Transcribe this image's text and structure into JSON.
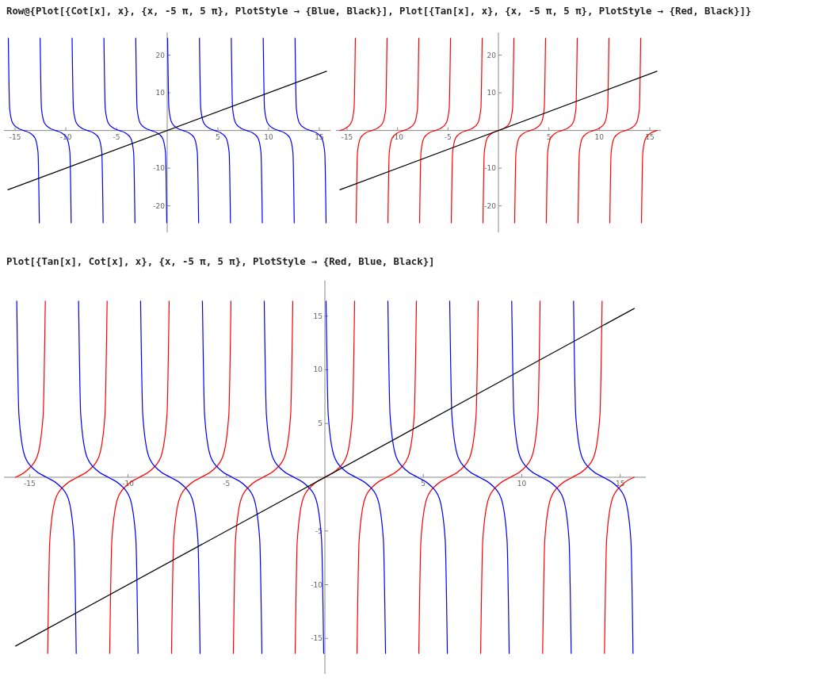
{
  "chart_data": [
    {
      "type": "line",
      "title": "Row@{Plot[{Cot[x], x}, {x, -5 π, 5 π}, PlotStyle → {Blue, Black}], Plot[{Tan[x], x}, {x, -5 π, 5 π}, PlotStyle → {Red, Black}]}",
      "xlim": [
        -16.1,
        16.1
      ],
      "ylim": [
        -27,
        26
      ],
      "xticks": [
        -15,
        -10,
        -5,
        5,
        10,
        15
      ],
      "yticks": [
        -20,
        -10,
        10,
        20
      ],
      "series": [
        {
          "color": "#0000ff",
          "x": [
            -15.67,
            -15.54,
            -15.24,
            -14.74,
            -14.14,
            -13.54,
            -13.04,
            -12.74,
            -12.61,
            null,
            -12.53,
            -12.4,
            -12.1,
            -11.6,
            -11.0,
            -10.4,
            -9.9,
            -9.6,
            -9.47,
            null,
            -9.38,
            -9.25,
            -8.95,
            -8.45,
            -7.85,
            -7.25,
            -6.75,
            -6.45,
            -6.32,
            null,
            -6.24,
            -6.11,
            -5.81,
            -5.31,
            -4.71,
            -4.11,
            -3.61,
            -3.31,
            -3.18,
            null,
            -3.1,
            -2.97,
            -2.67,
            -2.17,
            -1.57,
            -0.97,
            -0.47,
            -0.17,
            -0.04,
            null,
            0.04,
            0.17,
            0.47,
            0.97,
            1.57,
            2.17,
            2.67,
            2.97,
            3.1,
            null,
            3.18,
            3.31,
            3.61,
            4.11,
            4.71,
            5.31,
            5.81,
            6.11,
            6.24,
            null,
            6.32,
            6.45,
            6.75,
            7.25,
            7.85,
            8.45,
            8.95,
            9.25,
            9.38,
            null,
            9.47,
            9.6,
            9.9,
            10.4,
            11.0,
            11.6,
            12.1,
            12.4,
            12.53,
            null,
            12.61,
            12.74,
            13.04,
            13.54,
            14.14,
            14.74,
            15.24,
            15.54,
            15.67
          ],
          "values": [
            24.5,
            5.8,
            1.96,
            0.68,
            0,
            -0.68,
            -1.96,
            -5.8,
            -24.5,
            null,
            24.5,
            5.8,
            1.96,
            0.68,
            0,
            -0.68,
            -1.96,
            -5.8,
            -24.5,
            null,
            24.5,
            5.8,
            1.96,
            0.68,
            0,
            -0.68,
            -1.96,
            -5.8,
            -24.5,
            null,
            24.5,
            5.8,
            1.96,
            0.68,
            0,
            -0.68,
            -1.96,
            -5.8,
            -24.5,
            null,
            24.5,
            5.8,
            1.96,
            0.68,
            0,
            -0.68,
            -1.96,
            -5.8,
            -24.5,
            null,
            24.5,
            5.8,
            1.96,
            0.68,
            0,
            -0.68,
            -1.96,
            -5.8,
            -24.5,
            null,
            24.5,
            5.8,
            1.96,
            0.68,
            0,
            -0.68,
            -1.96,
            -5.8,
            -24.5,
            null,
            24.5,
            5.8,
            1.96,
            0.68,
            0,
            -0.68,
            -1.96,
            -5.8,
            -24.5,
            null,
            24.5,
            5.8,
            1.96,
            0.68,
            0,
            -0.68,
            -1.96,
            -5.8,
            -24.5,
            null,
            24.5,
            5.8,
            1.96,
            0.68,
            0,
            -0.68,
            -1.96,
            -5.8,
            -24.5
          ]
        },
        {
          "color": "#000000",
          "x": [
            -15.71,
            15.71
          ],
          "values": [
            -15.71,
            15.71
          ]
        }
      ]
    },
    {
      "type": "line",
      "xlim": [
        -16.1,
        16.1
      ],
      "ylim": [
        -27,
        26
      ],
      "xticks": [
        -15,
        -10,
        -5,
        5,
        10,
        15
      ],
      "yticks": [
        -20,
        -10,
        10,
        20
      ],
      "series": [
        {
          "color": "#ff0000",
          "x": [
            -15.71,
            -15.11,
            -14.61,
            -14.31,
            -14.18,
            null,
            -14.1,
            -13.97,
            -13.67,
            -13.17,
            -12.57,
            -11.97,
            -11.47,
            -11.17,
            -11.04,
            null,
            -10.95,
            -10.82,
            -10.52,
            -10.02,
            -9.42,
            -8.82,
            -8.32,
            -8.02,
            -7.89,
            null,
            -7.81,
            -7.68,
            -7.38,
            -6.88,
            -6.28,
            -5.68,
            -5.18,
            -4.88,
            -4.75,
            null,
            -4.67,
            -4.54,
            -4.24,
            -3.74,
            -3.14,
            -2.54,
            -2.04,
            -1.74,
            -1.61,
            null,
            -1.53,
            -1.4,
            -1.1,
            -0.6,
            0,
            0.6,
            1.1,
            1.4,
            1.53,
            null,
            1.61,
            1.74,
            2.04,
            2.54,
            3.14,
            3.74,
            4.24,
            4.54,
            4.67,
            null,
            4.75,
            4.88,
            5.18,
            5.68,
            6.28,
            6.88,
            7.38,
            7.68,
            7.81,
            null,
            7.89,
            8.02,
            8.32,
            8.82,
            9.42,
            10.02,
            10.52,
            10.82,
            10.95,
            null,
            11.04,
            11.17,
            11.47,
            11.97,
            12.57,
            13.17,
            13.67,
            13.97,
            14.1,
            null,
            14.18,
            14.31,
            14.61,
            15.11,
            15.71
          ],
          "values": [
            0,
            0.68,
            1.96,
            5.8,
            24.5,
            null,
            -24.5,
            -5.8,
            -1.96,
            -0.68,
            0,
            0.68,
            1.96,
            5.8,
            24.5,
            null,
            -24.5,
            -5.8,
            -1.96,
            -0.68,
            0,
            0.68,
            1.96,
            5.8,
            24.5,
            null,
            -24.5,
            -5.8,
            -1.96,
            -0.68,
            0,
            0.68,
            1.96,
            5.8,
            24.5,
            null,
            -24.5,
            -5.8,
            -1.96,
            -0.68,
            0,
            0.68,
            1.96,
            5.8,
            24.5,
            null,
            -24.5,
            -5.8,
            -1.96,
            -0.68,
            0,
            0.68,
            1.96,
            5.8,
            24.5,
            null,
            -24.5,
            -5.8,
            -1.96,
            -0.68,
            0,
            0.68,
            1.96,
            5.8,
            24.5,
            null,
            -24.5,
            -5.8,
            -1.96,
            -0.68,
            0,
            0.68,
            1.96,
            5.8,
            24.5,
            null,
            -24.5,
            -5.8,
            -1.96,
            -0.68,
            0,
            0.68,
            1.96,
            5.8,
            24.5,
            null,
            -24.5,
            -5.8,
            -1.96,
            -0.68,
            0,
            0.68,
            1.96,
            5.8,
            24.5,
            null,
            -24.5,
            -5.8,
            -1.96,
            -0.68,
            0
          ]
        },
        {
          "color": "#000000",
          "x": [
            -15.71,
            15.71
          ],
          "values": [
            -15.71,
            15.71
          ]
        }
      ]
    },
    {
      "type": "line",
      "title": "Plot[{Tan[x], Cot[x], x}, {x, -5 π, 5 π}, PlotStyle → {Red, Blue, Black}]",
      "xlim": [
        -16.3,
        16.3
      ],
      "ylim": [
        -18.3,
        18.3
      ],
      "xticks": [
        -15,
        -10,
        -5,
        5,
        10,
        15
      ],
      "yticks": [
        -15,
        -10,
        -5,
        5,
        10,
        15
      ],
      "series": [
        {
          "color": "#ff0000",
          "x": [
            -15.71,
            -15.11,
            -14.61,
            -14.31,
            -14.2,
            null,
            -14.08,
            -13.97,
            -13.67,
            -13.17,
            -12.57,
            -11.97,
            -11.47,
            -11.17,
            -11.06,
            null,
            -10.93,
            -10.82,
            -10.52,
            -10.02,
            -9.42,
            -8.82,
            -8.32,
            -8.02,
            -7.91,
            null,
            -7.79,
            -7.68,
            -7.38,
            -6.88,
            -6.28,
            -5.68,
            -5.18,
            -4.88,
            -4.77,
            null,
            -4.65,
            -4.54,
            -4.24,
            -3.74,
            -3.14,
            -2.54,
            -2.04,
            -1.74,
            -1.63,
            null,
            -1.51,
            -1.4,
            -1.1,
            -0.6,
            0,
            0.6,
            1.1,
            1.4,
            1.51,
            null,
            1.63,
            1.74,
            2.04,
            2.54,
            3.14,
            3.74,
            4.24,
            4.54,
            4.65,
            null,
            4.77,
            4.88,
            5.18,
            5.68,
            6.28,
            6.88,
            7.38,
            7.68,
            7.79,
            null,
            7.91,
            8.02,
            8.32,
            8.82,
            9.42,
            10.02,
            10.52,
            10.82,
            10.93,
            null,
            11.06,
            11.17,
            11.47,
            11.97,
            12.57,
            13.17,
            13.67,
            13.97,
            14.08,
            null,
            14.2,
            14.31,
            14.61,
            15.11,
            15.71
          ],
          "values": [
            0,
            0.68,
            1.96,
            5.8,
            16.4,
            null,
            -16.4,
            -5.8,
            -1.96,
            -0.68,
            0,
            0.68,
            1.96,
            5.8,
            16.4,
            null,
            -16.4,
            -5.8,
            -1.96,
            -0.68,
            0,
            0.68,
            1.96,
            5.8,
            16.4,
            null,
            -16.4,
            -5.8,
            -1.96,
            -0.68,
            0,
            0.68,
            1.96,
            5.8,
            16.4,
            null,
            -16.4,
            -5.8,
            -1.96,
            -0.68,
            0,
            0.68,
            1.96,
            5.8,
            16.4,
            null,
            -16.4,
            -5.8,
            -1.96,
            -0.68,
            0,
            0.68,
            1.96,
            5.8,
            16.4,
            null,
            -16.4,
            -5.8,
            -1.96,
            -0.68,
            0,
            0.68,
            1.96,
            5.8,
            16.4,
            null,
            -16.4,
            -5.8,
            -1.96,
            -0.68,
            0,
            0.68,
            1.96,
            5.8,
            16.4,
            null,
            -16.4,
            -5.8,
            -1.96,
            -0.68,
            0,
            0.68,
            1.96,
            5.8,
            16.4,
            null,
            -16.4,
            -5.8,
            -1.96,
            -0.68,
            0,
            0.68,
            1.96,
            5.8,
            16.4,
            null,
            -16.4,
            -5.8,
            -1.96,
            -0.68,
            0
          ]
        },
        {
          "color": "#0000ff",
          "x": [
            -15.65,
            -15.54,
            -15.24,
            -14.74,
            -14.14,
            -13.54,
            -13.04,
            -12.74,
            -12.63,
            null,
            -12.51,
            -12.4,
            -12.1,
            -11.6,
            -11.0,
            -10.4,
            -9.9,
            -9.6,
            -9.49,
            null,
            -9.36,
            -9.25,
            -8.95,
            -8.45,
            -7.85,
            -7.25,
            -6.75,
            -6.45,
            -6.34,
            null,
            -6.22,
            -6.11,
            -5.81,
            -5.31,
            -4.71,
            -4.11,
            -3.61,
            -3.31,
            -3.2,
            null,
            -3.08,
            -2.97,
            -2.67,
            -2.17,
            -1.57,
            -0.97,
            -0.47,
            -0.17,
            -0.06,
            null,
            0.06,
            0.17,
            0.47,
            0.97,
            1.57,
            2.17,
            2.67,
            2.97,
            3.08,
            null,
            3.2,
            3.31,
            3.61,
            4.11,
            4.71,
            5.31,
            5.81,
            6.11,
            6.22,
            null,
            6.34,
            6.45,
            6.75,
            7.25,
            7.85,
            8.45,
            8.95,
            9.25,
            9.36,
            null,
            9.49,
            9.6,
            9.9,
            10.4,
            11.0,
            11.6,
            12.1,
            12.4,
            12.51,
            null,
            12.63,
            12.74,
            13.04,
            13.54,
            14.14,
            14.74,
            15.24,
            15.54,
            15.65
          ],
          "values": [
            16.4,
            5.8,
            1.96,
            0.68,
            0,
            -0.68,
            -1.96,
            -5.8,
            -16.4,
            null,
            16.4,
            5.8,
            1.96,
            0.68,
            0,
            -0.68,
            -1.96,
            -5.8,
            -16.4,
            null,
            16.4,
            5.8,
            1.96,
            0.68,
            0,
            -0.68,
            -1.96,
            -5.8,
            -16.4,
            null,
            16.4,
            5.8,
            1.96,
            0.68,
            0,
            -0.68,
            -1.96,
            -5.8,
            -16.4,
            null,
            16.4,
            5.8,
            1.96,
            0.68,
            0,
            -0.68,
            -1.96,
            -5.8,
            -16.4,
            null,
            16.4,
            5.8,
            1.96,
            0.68,
            0,
            -0.68,
            -1.96,
            -5.8,
            -16.4,
            null,
            16.4,
            5.8,
            1.96,
            0.68,
            0,
            -0.68,
            -1.96,
            -5.8,
            -16.4,
            null,
            16.4,
            5.8,
            1.96,
            0.68,
            0,
            -0.68,
            -1.96,
            -5.8,
            -16.4,
            null,
            16.4,
            5.8,
            1.96,
            0.68,
            0,
            -0.68,
            -1.96,
            -5.8,
            -16.4,
            null,
            16.4,
            5.8,
            1.96,
            0.68,
            0,
            -0.68,
            -1.96,
            -5.8,
            -16.4
          ]
        },
        {
          "color": "#000000",
          "x": [
            -15.71,
            15.71
          ],
          "values": [
            -15.71,
            15.71
          ]
        }
      ]
    }
  ]
}
